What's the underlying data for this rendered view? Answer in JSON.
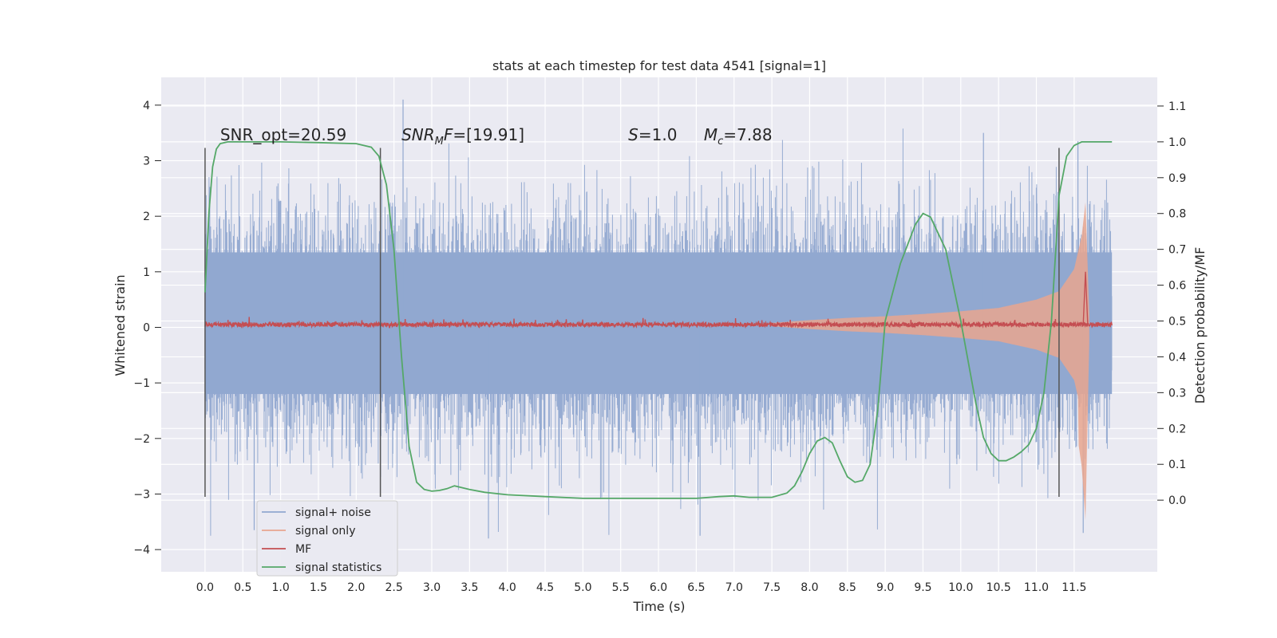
{
  "chart_data": {
    "type": "line",
    "title": "stats at each timestep for test data 4541 [signal=1]",
    "xlabel": "Time (s)",
    "ylabel": "Whitened strain",
    "ylabel_right": "Detection probability/MF",
    "x_ticks": [
      "0.0",
      "0.5",
      "1.0",
      "1.5",
      "2.0",
      "2.5",
      "3.0",
      "3.5",
      "4.0",
      "4.5",
      "5.0",
      "5.5",
      "6.0",
      "6.5",
      "7.0",
      "7.5",
      "8.0",
      "8.5",
      "9.0",
      "9.5",
      "10.0",
      "10.5",
      "11.0",
      "11.5"
    ],
    "y_ticks_left": [
      "4",
      "3",
      "2",
      "1",
      "0",
      "−1",
      "−2",
      "−3",
      "−4"
    ],
    "y_ticks_right": [
      "1.1",
      "1.0",
      "0.9",
      "0.8",
      "0.7",
      "0.6",
      "0.5",
      "0.4",
      "0.3",
      "0.2",
      "0.1",
      "0.0"
    ],
    "xlim": [
      -0.58,
      12.6
    ],
    "ylim_left": [
      -4.4,
      4.5
    ],
    "ylim_right": [
      -0.2,
      1.18
    ],
    "grid": true,
    "legend_position": "lower-left",
    "background": "#eaeaf2",
    "annotations": [
      {
        "id": "snr_opt",
        "text": "SNR_opt=20.59",
        "x": 0.2,
        "y_right": 1.0
      },
      {
        "id": "snr_mf",
        "text": "SNR_MF=[19.91]",
        "x": 2.6,
        "y_right": 1.0
      },
      {
        "id": "s",
        "text": "S=1.0",
        "x": 5.6,
        "y_right": 1.0
      },
      {
        "id": "mc",
        "text": "M_c=7.88",
        "x": 6.6,
        "y_right": 1.0
      }
    ],
    "vertical_lines_x": [
      0.0,
      2.32,
      11.3
    ],
    "series": [
      {
        "name": "signal+ noise",
        "color": "#91a8d0",
        "axis": "left",
        "x_range": [
          0.0,
          12.0
        ],
        "approx_envelope": {
          "min": -3.75,
          "max": 4.1
        }
      },
      {
        "name": "signal only",
        "color": "#e8a68f",
        "axis": "left",
        "x": [
          7.5,
          8.0,
          8.5,
          9.0,
          9.5,
          10.0,
          10.5,
          11.0,
          11.3,
          11.5,
          11.6,
          11.65,
          11.7
        ],
        "amplitude": [
          0.03,
          0.08,
          0.12,
          0.15,
          0.19,
          0.24,
          0.3,
          0.45,
          0.6,
          1.0,
          1.6,
          2.2,
          0.2
        ]
      },
      {
        "name": "MF",
        "color": "#c44e52",
        "axis": "left",
        "x_range": [
          0.0,
          12.0
        ],
        "baseline": 0.05,
        "noise": 0.08,
        "spike": {
          "x": 11.65,
          "y": 1.0
        }
      },
      {
        "name": "signal statistics",
        "color": "#55a868",
        "axis": "right",
        "x": [
          0.0,
          0.05,
          0.1,
          0.15,
          0.2,
          0.3,
          0.5,
          1.0,
          1.5,
          2.0,
          2.2,
          2.3,
          2.4,
          2.5,
          2.6,
          2.7,
          2.8,
          2.9,
          3.0,
          3.1,
          3.2,
          3.3,
          3.5,
          3.7,
          4.0,
          4.5,
          5.0,
          5.5,
          6.0,
          6.5,
          6.8,
          7.0,
          7.2,
          7.5,
          7.7,
          7.8,
          7.9,
          8.0,
          8.1,
          8.2,
          8.3,
          8.4,
          8.5,
          8.6,
          8.7,
          8.8,
          8.9,
          9.0,
          9.2,
          9.4,
          9.5,
          9.6,
          9.8,
          10.0,
          10.2,
          10.3,
          10.4,
          10.5,
          10.6,
          10.7,
          10.8,
          10.9,
          11.0,
          11.1,
          11.2,
          11.3,
          11.4,
          11.5,
          11.6,
          11.7,
          11.8,
          11.9,
          12.0
        ],
        "y": [
          0.58,
          0.8,
          0.93,
          0.98,
          0.995,
          1.0,
          1.0,
          1.0,
          0.998,
          0.995,
          0.985,
          0.96,
          0.88,
          0.7,
          0.4,
          0.15,
          0.05,
          0.03,
          0.025,
          0.027,
          0.032,
          0.04,
          0.03,
          0.022,
          0.015,
          0.01,
          0.005,
          0.005,
          0.005,
          0.005,
          0.01,
          0.012,
          0.008,
          0.008,
          0.02,
          0.04,
          0.08,
          0.13,
          0.165,
          0.175,
          0.16,
          0.11,
          0.065,
          0.05,
          0.055,
          0.1,
          0.25,
          0.5,
          0.66,
          0.77,
          0.8,
          0.79,
          0.7,
          0.5,
          0.27,
          0.175,
          0.13,
          0.11,
          0.11,
          0.12,
          0.135,
          0.155,
          0.2,
          0.3,
          0.5,
          0.85,
          0.96,
          0.99,
          1.0,
          1.0,
          1.0,
          1.0,
          1.0
        ]
      }
    ]
  }
}
